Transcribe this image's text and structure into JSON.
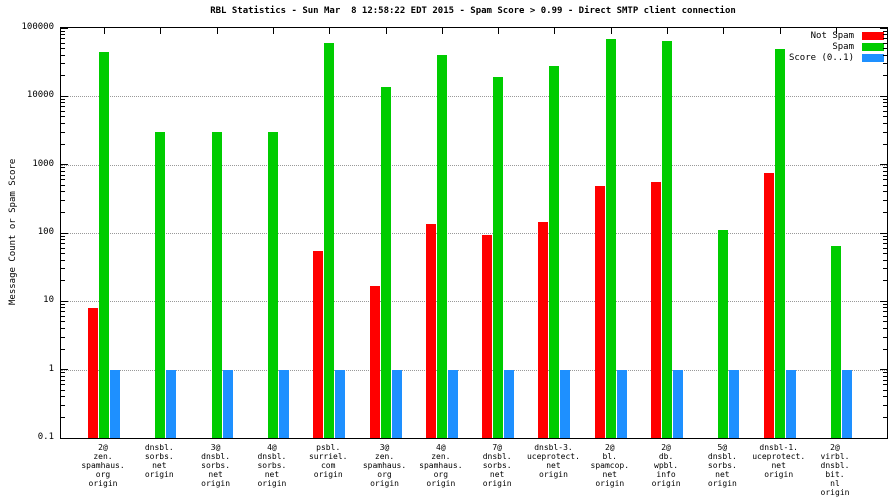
{
  "chart_data": {
    "type": "bar",
    "title": "RBL Statistics - Sun Mar  8 12:58:22 EDT 2015 - Spam Score > 0.99 - Direct SMTP client connection",
    "ylabel": "Message Count or Spam Score",
    "xlabel": "",
    "yscale": "log",
    "ylim": [
      0.1,
      100000
    ],
    "grid": "horizontal-dotted",
    "legend_position": "top-right-inside",
    "yticks": [
      {
        "value": 100000,
        "label": "100000"
      },
      {
        "value": 10000,
        "label": "10000"
      },
      {
        "value": 1000,
        "label": "1000"
      },
      {
        "value": 100,
        "label": "100"
      },
      {
        "value": 10,
        "label": "10"
      },
      {
        "value": 1,
        "label": "1"
      },
      {
        "value": 0.1,
        "label": "0.1"
      }
    ],
    "categories": [
      [
        "2@",
        "zen.",
        "spamhaus.",
        "org",
        "origin"
      ],
      [
        "dnsbl.",
        "sorbs.",
        "net",
        "origin"
      ],
      [
        "3@",
        "dnsbl.",
        "sorbs.",
        "net",
        "origin"
      ],
      [
        "4@",
        "dnsbl.",
        "sorbs.",
        "net",
        "origin"
      ],
      [
        "psbl.",
        "surriel.",
        "com",
        "origin"
      ],
      [
        "3@",
        "zen.",
        "spamhaus.",
        "org",
        "origin"
      ],
      [
        "4@",
        "zen.",
        "spamhaus.",
        "org",
        "origin"
      ],
      [
        "7@",
        "dnsbl.",
        "sorbs.",
        "net",
        "origin"
      ],
      [
        "dnsbl-3.",
        "uceprotect.",
        "net",
        "origin"
      ],
      [
        "2@",
        "bl.",
        "spamcop.",
        "net",
        "origin"
      ],
      [
        "2@",
        "db.",
        "wpbl.",
        "info",
        "origin"
      ],
      [
        "5@",
        "dnsbl.",
        "sorbs.",
        "net",
        "origin"
      ],
      [
        "dnsbl-1.",
        "uceprotect.",
        "net",
        "origin"
      ],
      [
        "2@",
        "virbl.",
        "dnsbl.",
        "bit.",
        "nl",
        "origin"
      ]
    ],
    "series": [
      {
        "name": "Not Spam",
        "color": "#ff0000",
        "values": [
          8,
          0,
          0,
          0,
          55,
          17,
          135,
          95,
          145,
          480,
          560,
          0,
          750,
          0
        ]
      },
      {
        "name": "Spam",
        "color": "#00cc00",
        "values": [
          45000,
          3000,
          3000,
          3000,
          60000,
          13500,
          40000,
          19000,
          28000,
          70000,
          65000,
          110,
          50000,
          65
        ]
      },
      {
        "name": "Score (0..1)",
        "color": "#1e90ff",
        "values": [
          1,
          1,
          1,
          1,
          1,
          1,
          1,
          1,
          1,
          1,
          1,
          1,
          1,
          1
        ]
      }
    ]
  },
  "colors": {
    "background": "#ffffff",
    "border": "#000000",
    "grid": "#999999"
  }
}
